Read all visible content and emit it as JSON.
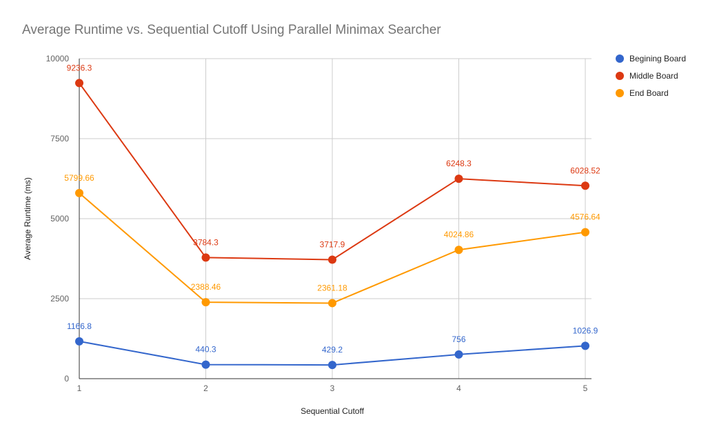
{
  "chart_data": {
    "type": "line",
    "title": "Average Runtime vs. Sequential Cutoff Using Parallel Minimax Searcher",
    "xlabel": "Sequential Cutoff",
    "ylabel": "Average Runtime (ms)",
    "x": [
      1,
      2,
      3,
      4,
      5
    ],
    "x_tick_labels": [
      "1",
      "2",
      "3",
      "4",
      "5"
    ],
    "ylim": [
      0,
      10000
    ],
    "y_tick_labels": [
      "0",
      "2500",
      "5000",
      "7500",
      "10000"
    ],
    "y_ticks": [
      0,
      2500,
      5000,
      7500,
      10000
    ],
    "grid": true,
    "legend_position": "right",
    "series": [
      {
        "name": "Begining Board",
        "color": "#3366cc",
        "values": [
          1166.8,
          440.3,
          429.2,
          756,
          1026.9
        ],
        "labels": [
          "1166.8",
          "440.3",
          "429.2",
          "756",
          "1026.9"
        ]
      },
      {
        "name": "Middle Board",
        "color": "#dc3912",
        "values": [
          9236.3,
          3784.3,
          3717.9,
          6248.3,
          6028.52
        ],
        "labels": [
          "9236.3",
          "3784.3",
          "3717.9",
          "6248.3",
          "6028.52"
        ]
      },
      {
        "name": "End Board",
        "color": "#ff9900",
        "values": [
          5799.66,
          2388.46,
          2361.18,
          4024.86,
          4576.64
        ],
        "labels": [
          "5799.66",
          "2388.46",
          "2361.18",
          "4024.86",
          "4576.64"
        ]
      }
    ]
  }
}
